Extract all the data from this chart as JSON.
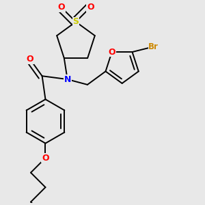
{
  "background_color": "#e8e8e8",
  "atom_colors": {
    "S": "#cccc00",
    "O": "#ff0000",
    "N": "#0000ff",
    "Br": "#cc8800",
    "C": "#000000"
  },
  "bond_color": "#000000",
  "bond_lw": 1.4,
  "figsize": [
    3.0,
    3.0
  ],
  "dpi": 100
}
